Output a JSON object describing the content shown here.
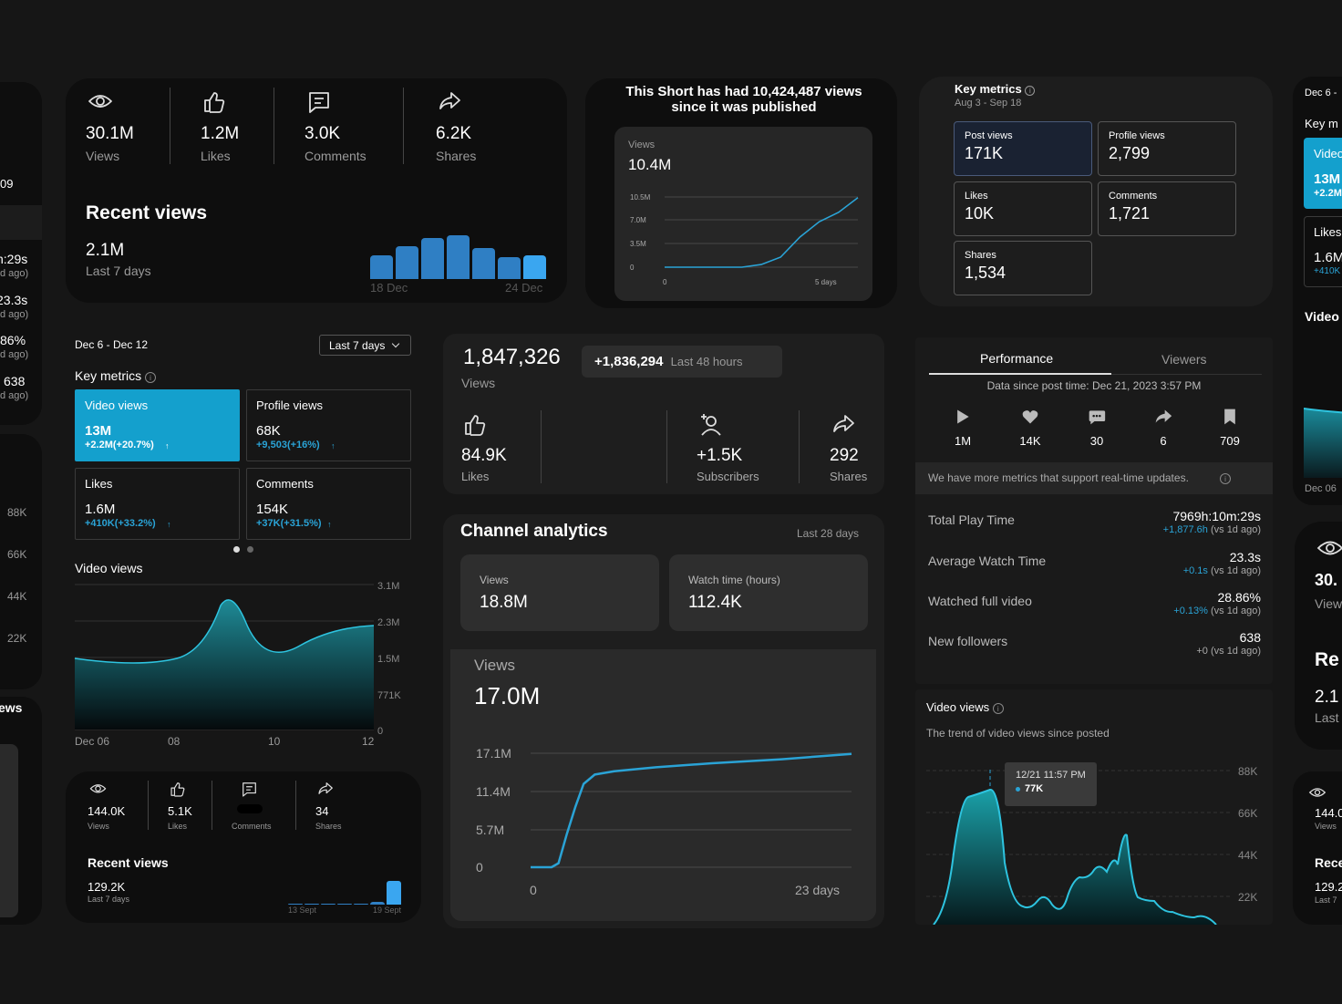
{
  "card1": {
    "stats": [
      {
        "value": "30.1M",
        "label": "Views",
        "icon": "eye-icon"
      },
      {
        "value": "1.2M",
        "label": "Likes",
        "icon": "thumbs-up-icon"
      },
      {
        "value": "3.0K",
        "label": "Comments",
        "icon": "comment-icon"
      },
      {
        "value": "6.2K",
        "label": "Shares",
        "icon": "share-icon"
      }
    ],
    "recent_title": "Recent views",
    "recent_value": "2.1M",
    "recent_period": "Last 7 days",
    "axis_start": "18 Dec",
    "axis_end": "24 Dec",
    "bars": [
      0.45,
      0.62,
      0.78,
      0.82,
      0.58,
      0.42,
      0.45
    ]
  },
  "card2": {
    "headline": "This Short has had 10,424,487 views since it was published",
    "label": "Views",
    "value": "10.4M",
    "chart_data": {
      "type": "line",
      "x_start": "0",
      "x_end": "5 days",
      "yticks": [
        "10.5M",
        "7.0M",
        "3.5M",
        "0"
      ],
      "ylim": [
        0,
        10.5
      ],
      "points": [
        [
          0,
          0
        ],
        [
          2,
          0
        ],
        [
          2.5,
          0.4
        ],
        [
          3,
          1.5
        ],
        [
          3.5,
          4.5
        ],
        [
          4,
          6.8
        ],
        [
          4.5,
          8.2
        ],
        [
          5,
          10.4
        ]
      ]
    }
  },
  "card3": {
    "title": "Key metrics",
    "date_range": "Aug 3 - Sep 18",
    "tiles": [
      {
        "label": "Post views",
        "value": "171K"
      },
      {
        "label": "Profile views",
        "value": "2,799"
      },
      {
        "label": "Likes",
        "value": "10K"
      },
      {
        "label": "Comments",
        "value": "1,721"
      },
      {
        "label": "Shares",
        "value": "1,534"
      }
    ]
  },
  "card4": {
    "date_range": "Dec 6 - Dec 12",
    "dropdown": "Last 7 days",
    "title": "Key metrics",
    "tiles": [
      {
        "label": "Video views",
        "value": "13M",
        "delta": "+2.2M(+20.7%)"
      },
      {
        "label": "Profile views",
        "value": "68K",
        "delta": "+9,503(+16%)"
      },
      {
        "label": "Likes",
        "value": "1.6M",
        "delta": "+410K(+33.2%)"
      },
      {
        "label": "Comments",
        "value": "154K",
        "delta": "+37K(+31.5%)"
      }
    ],
    "chart_title": "Video views",
    "chart_data": {
      "type": "area",
      "yticks": [
        "3.1M",
        "2.3M",
        "1.5M",
        "771K",
        "0"
      ],
      "xticks": [
        "Dec 06",
        "08",
        "10",
        "12"
      ]
    }
  },
  "card5": {
    "stats": [
      {
        "value": "144.0K",
        "label": "Views"
      },
      {
        "value": "5.1K",
        "label": "Likes"
      },
      {
        "value": "",
        "label": "Comments"
      },
      {
        "value": "34",
        "label": "Shares"
      }
    ],
    "recent_title": "Recent views",
    "recent_value": "129.2K",
    "recent_period": "Last 7 days",
    "axis_start": "13 Sept",
    "axis_end": "19 Sept"
  },
  "card6": {
    "value": "1,847,326",
    "label": "Views",
    "delta": "+1,836,294",
    "delta_period": "Last 48 hours",
    "stats": [
      {
        "value": "84.9K",
        "label": "Likes"
      },
      {
        "value": "+1.5K",
        "label": "Subscribers"
      },
      {
        "value": "292",
        "label": "Shares"
      }
    ]
  },
  "card7": {
    "title": "Channel analytics",
    "period": "Last 28 days",
    "tiles": [
      {
        "label": "Views",
        "value": "18.8M"
      },
      {
        "label": "Watch time (hours)",
        "value": "112.4K"
      }
    ],
    "chart_label": "Views",
    "chart_value": "17.0M",
    "chart_data": {
      "type": "line",
      "yticks": [
        "17.1M",
        "11.4M",
        "5.7M",
        "0"
      ],
      "x_start": "0",
      "x_end": "23 days",
      "ylim": [
        0,
        17.1
      ],
      "points": [
        [
          0,
          0
        ],
        [
          1.5,
          0
        ],
        [
          2,
          0.6
        ],
        [
          2.6,
          5
        ],
        [
          3.2,
          9
        ],
        [
          3.8,
          12.5
        ],
        [
          4.6,
          13.9
        ],
        [
          6,
          14.4
        ],
        [
          9,
          15.0
        ],
        [
          13,
          15.6
        ],
        [
          18,
          16.2
        ],
        [
          23,
          17.0
        ]
      ]
    }
  },
  "card8": {
    "tabs": [
      "Performance",
      "Viewers"
    ],
    "data_since": "Data since post time: Dec 21, 2023 3:57 PM",
    "icon_stats": [
      {
        "value": "1M",
        "icon": "play-icon"
      },
      {
        "value": "14K",
        "icon": "heart-icon"
      },
      {
        "value": "30",
        "icon": "chat-icon"
      },
      {
        "value": "6",
        "icon": "share-icon"
      },
      {
        "value": "709",
        "icon": "bookmark-icon"
      }
    ],
    "notice": "We have more metrics that support real-time updates.",
    "rows": [
      {
        "label": "Total Play Time",
        "value": "7969h:10m:29s",
        "delta": "+1,877.6h",
        "vs": "(vs 1d ago)"
      },
      {
        "label": "Average Watch Time",
        "value": "23.3s",
        "delta": "+0.1s",
        "vs": "(vs 1d ago)"
      },
      {
        "label": "Watched full video",
        "value": "28.86%",
        "delta": "+0.13%",
        "vs": "(vs 1d ago)"
      },
      {
        "label": "New followers",
        "value": "638",
        "delta": "+0",
        "vs": "(vs 1d ago)"
      }
    ],
    "chart_title": "Video views",
    "chart_subtitle": "The trend of video views since posted",
    "tooltip_date": "12/21 11:57 PM",
    "tooltip_value": "77K",
    "chart_data": {
      "type": "area",
      "yticks": [
        "88K",
        "66K",
        "44K",
        "22K"
      ]
    }
  },
  "left_partial": {
    "texts": [
      "09",
      "h:29s",
      "d ago)",
      "23.3s",
      "d ago)",
      "86%",
      "d ago)",
      "638",
      "d ago)"
    ],
    "yticks": [
      "88K",
      "66K",
      "44K",
      "22K"
    ],
    "views_label": "ews"
  },
  "right_partial": {
    "texts": [
      "Dec 6 -",
      "Key m",
      "Video",
      "13M",
      "+2.2M",
      "Likes",
      "1.6M",
      "+410K",
      "Video",
      "Dec 06",
      "30.",
      "View",
      "Re",
      "2.1",
      "Last",
      "144.0",
      "Views",
      "Rece",
      "129.2",
      "Last 7"
    ]
  }
}
